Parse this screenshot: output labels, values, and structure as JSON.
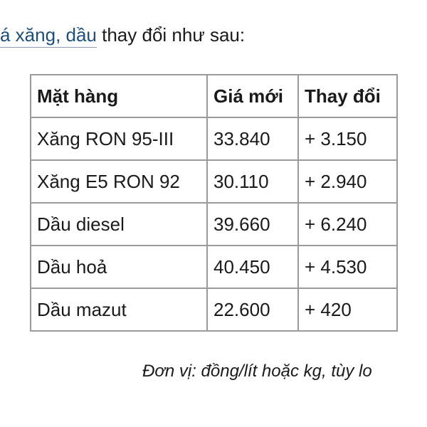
{
  "intro": {
    "link_text": "á xăng, dầu",
    "rest_text": " thay đổi như sau:"
  },
  "table": {
    "headers": [
      "Mặt hàng",
      "Giá mới",
      "Thay đổi"
    ],
    "rows": [
      [
        "Xăng RON 95-III",
        "33.840",
        "+ 3.150"
      ],
      [
        "Xăng E5 RON 92",
        "30.110",
        "+ 2.940"
      ],
      [
        "Dầu diesel",
        "39.660",
        "+ 6.240"
      ],
      [
        "Dầu hoả",
        "40.450",
        "+ 4.530"
      ],
      [
        "Dầu mazut",
        "22.600",
        "+ 420"
      ]
    ]
  },
  "unit_note": "Đơn vị: đồng/lít hoặc kg, tùy lo",
  "colors": {
    "link": "#1f4e79",
    "border": "#9a9a9a"
  }
}
